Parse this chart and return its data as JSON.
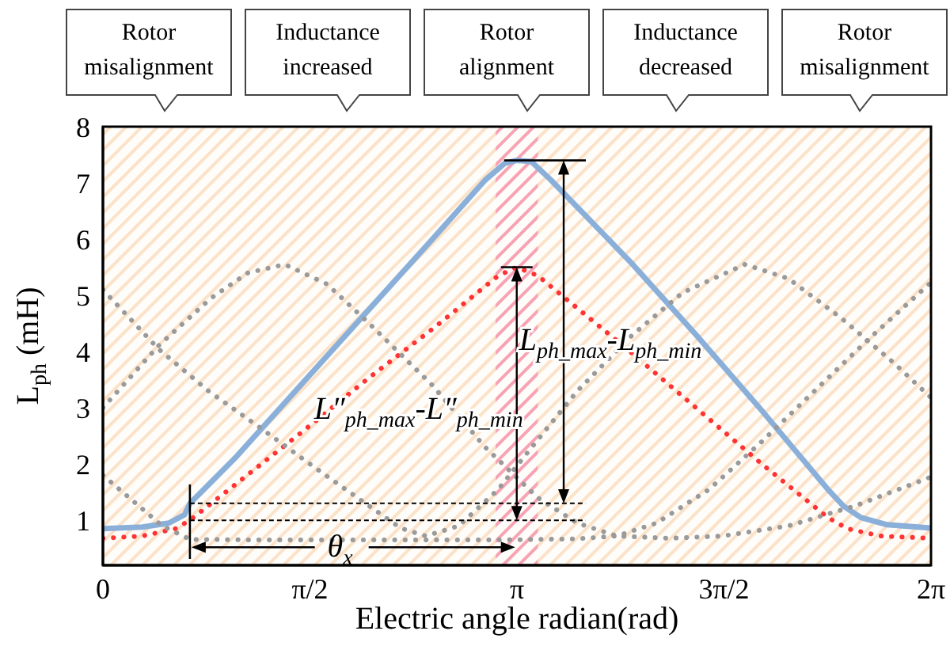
{
  "chart_data": {
    "type": "line",
    "xlabel": "Electric angle radian(rad)",
    "ylabel": "L$_{ph}$ (mH)",
    "xlim": [
      0,
      6.2832
    ],
    "xticks": [
      0,
      {
        "value": 1.5708,
        "label": "π/2"
      },
      {
        "value": 3.1416,
        "label": "π"
      },
      {
        "value": 4.7124,
        "label": "3π/2"
      },
      {
        "value": 6.2832,
        "label": "2π"
      }
    ],
    "ylim": [
      0.2,
      8
    ],
    "yticks": [
      1,
      2,
      3,
      4,
      5,
      6,
      7,
      8
    ],
    "marker": "none",
    "series": [
      {
        "color": "#8ab0da",
        "line_style": "solid",
        "x": [
          0,
          0.3,
          0.5,
          0.62,
          0.66,
          1.0,
          1.5,
          2.0,
          2.5,
          2.9,
          3.05,
          3.14,
          3.25,
          3.4,
          4.0,
          4.5,
          5.0,
          5.5,
          5.62,
          5.75,
          5.95,
          6.2832
        ],
        "values": [
          0.85,
          0.88,
          0.95,
          1.1,
          1.3,
          2.1,
          3.4,
          4.7,
          6.0,
          7.05,
          7.35,
          7.4,
          7.38,
          7.05,
          5.6,
          4.3,
          2.95,
          1.55,
          1.25,
          1.05,
          0.92,
          0.86
        ]
      },
      {
        "color": "#ff3333",
        "line_style": "dotted",
        "x": [
          0,
          0.3,
          0.55,
          0.66,
          1.5,
          2.0,
          2.5,
          3.0,
          3.14,
          3.3,
          4.0,
          4.5,
          5.0,
          5.5,
          5.65,
          5.9,
          6.2832
        ],
        "values": [
          0.68,
          0.72,
          0.85,
          1.0,
          2.55,
          3.5,
          4.4,
          5.35,
          5.5,
          5.35,
          4.0,
          3.0,
          2.0,
          1.05,
          0.85,
          0.72,
          0.68
        ]
      },
      {
        "color": "#9a9a9a",
        "line_style": "dotted",
        "x": [
          0,
          0.42,
          0.82,
          1.1,
          1.38,
          1.7,
          2.02,
          2.5,
          2.9,
          3.3,
          3.6,
          3.9,
          4.3,
          4.7,
          5.2,
          5.7,
          6.2832
        ],
        "values": [
          3.0,
          4.1,
          4.95,
          5.4,
          5.55,
          5.2,
          4.5,
          3.4,
          2.3,
          1.4,
          0.95,
          0.72,
          0.68,
          0.72,
          0.9,
          1.25,
          1.77
        ]
      },
      {
        "color": "#9a9a9a",
        "line_style": "dotted",
        "x": [
          0,
          0.42,
          0.8,
          1.22,
          1.6,
          1.95,
          2.26,
          2.45,
          2.7,
          3.0,
          3.22,
          3.6,
          4.02,
          4.4,
          4.87,
          5.2,
          5.6,
          6.0,
          6.2832
        ],
        "values": [
          5.1,
          4.05,
          3.3,
          2.6,
          1.95,
          1.37,
          0.86,
          0.72,
          0.9,
          1.55,
          2.2,
          3.3,
          4.3,
          5.05,
          5.55,
          5.3,
          4.6,
          3.8,
          3.18
        ]
      },
      {
        "color": "#9a9a9a",
        "line_style": "dotted",
        "x": [
          0,
          0.2,
          0.45,
          0.66,
          1.2,
          2.0,
          3.0,
          3.6,
          3.9,
          4.2,
          4.6,
          5.0,
          5.4,
          5.8,
          6.2832
        ],
        "values": [
          1.8,
          1.4,
          0.9,
          0.66,
          0.65,
          0.65,
          0.65,
          0.67,
          0.72,
          0.95,
          1.55,
          2.4,
          3.3,
          4.2,
          5.23
        ]
      }
    ],
    "bands": [
      {
        "axis": "x",
        "from": 0,
        "to": 6.2832,
        "color": "#fbe2c8"
      },
      {
        "axis": "x",
        "from": 2.98,
        "to": 3.3,
        "color": "#f7a3b4"
      }
    ],
    "annotations": [
      "Rotor misalignment",
      "Inductance increased",
      "Rotor alignment",
      "Inductance decreased",
      "Rotor misalignment",
      {
        "text": "L$_{ph_max}$-L$_{ph_min}$",
        "x": 3.85,
        "y": 4.2
      },
      "L″$_{ph_max}$-L″$_{ph_min}$",
      {
        "text": "θ$_{x}$",
        "x": 1.8,
        "y": 0.52
      }
    ],
    "ref_lines": [
      {
        "axis": "y",
        "value": 1.3,
        "line_style": "dashed",
        "color": "#000000"
      },
      {
        "axis": "y",
        "value": 1.0,
        "line_style": "dashed",
        "color": "#000000"
      }
    ]
  }
}
